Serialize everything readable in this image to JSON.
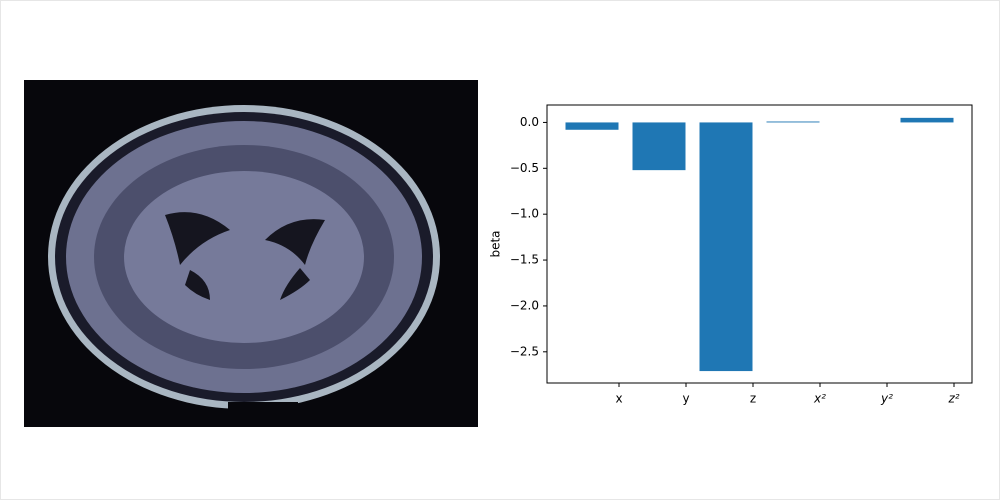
{
  "chart_data": {
    "type": "bar",
    "categories": [
      "x",
      "y",
      "z",
      "x²",
      "y²",
      "z²"
    ],
    "values": [
      -0.08,
      -0.52,
      -2.71,
      0.01,
      0.0,
      0.05
    ],
    "color": "#1f77b4",
    "ylabel": "beta",
    "ylim": [
      -2.84,
      0.19
    ],
    "yticks": [
      {
        "value": 0.0,
        "label": "0.0"
      },
      {
        "value": -0.5,
        "label": "−0.5"
      },
      {
        "value": -1.0,
        "label": "−1.0"
      },
      {
        "value": -1.5,
        "label": "−1.5"
      },
      {
        "value": -2.0,
        "label": "−2.0"
      },
      {
        "value": -2.5,
        "label": "−2.5"
      }
    ],
    "grid": false
  }
}
